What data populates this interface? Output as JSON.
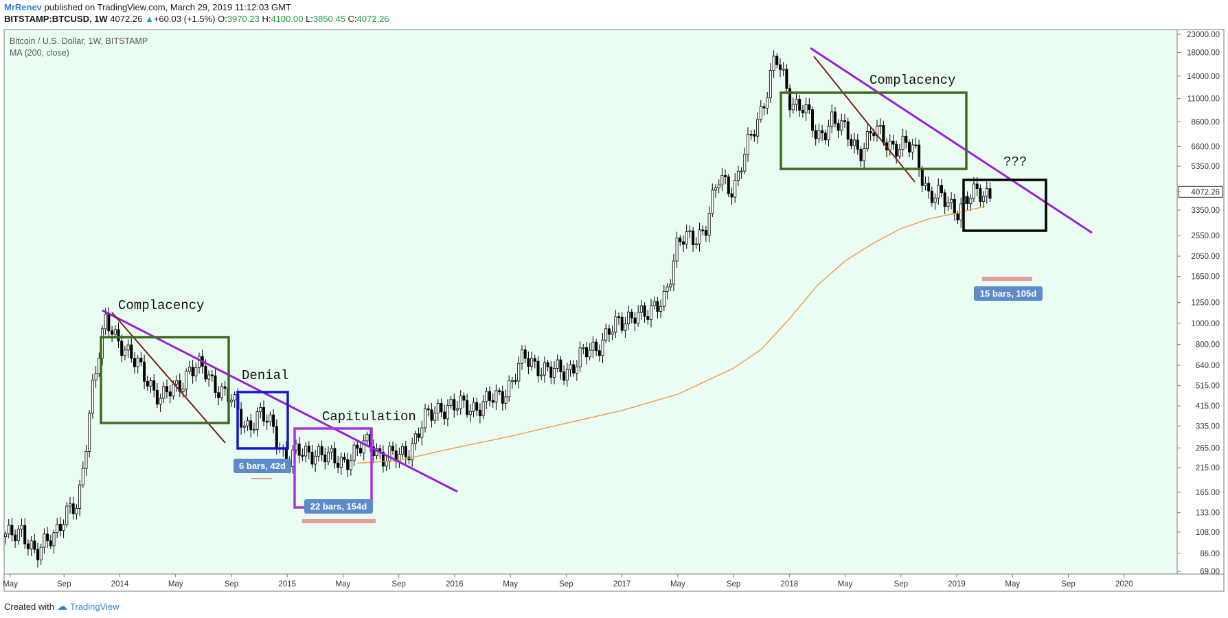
{
  "header": {
    "author": "MrRenev",
    "published": " published on TradingView.com, March 29, 2019 11:12:03 GMT",
    "symbol": "BITSTAMP:BTCUSD, 1W",
    "price": "4072.26",
    "change": "+60.03 (+1.5%)",
    "o_label": "O:",
    "o": "3970.23",
    "h_label": "H:",
    "h": "4100.00",
    "l_label": "L:",
    "l": "3850.45",
    "c_label": "C:",
    "c": "4072.26"
  },
  "footer": {
    "created": "Created with",
    "brand": "TradingView"
  },
  "colors": {
    "background": "#eafdf3",
    "up": "#ffffff",
    "down": "#000000",
    "ma": "#f59a3b",
    "trend": "#9b1de0",
    "green_box": "#3c6b1c",
    "blue_box": "#1515d8",
    "purple_box": "#a436e0",
    "black_box": "#000000",
    "brown_line": "#7c1f12",
    "note_bg": "#5b8bc9",
    "range_bar": "#e29c9c"
  },
  "chart_data": {
    "type": "candlestick",
    "title": "Bitcoin / U.S. Dollar, 1W, BITSTAMP",
    "indicator": "MA (200, close)",
    "y_scale": "log",
    "y_ticks": [
      "23000.00",
      "18000.00",
      "14000.00",
      "11000.00",
      "8600.00",
      "6600.00",
      "5350.00",
      "4072.26",
      "3350.00",
      "2550.00",
      "2050.00",
      "1650.00",
      "1250.00",
      "1000.00",
      "800.00",
      "640.00",
      "515.00",
      "415.00",
      "335.00",
      "265.00",
      "215.00",
      "165.00",
      "133.00",
      "108.00",
      "86.00",
      "69.00"
    ],
    "x_ticks": [
      "May",
      "Sep",
      "2014",
      "May",
      "Sep",
      "2015",
      "May",
      "Sep",
      "2016",
      "May",
      "Sep",
      "2017",
      "May",
      "Sep",
      "2018",
      "May",
      "Sep",
      "2019",
      "May",
      "Sep",
      "2020"
    ],
    "last_price": "4072.26",
    "price_path": [
      [
        "2013-05",
        100
      ],
      [
        "2013-06",
        115
      ],
      [
        "2013-07",
        80
      ],
      [
        "2013-08",
        105
      ],
      [
        "2013-09",
        125
      ],
      [
        "2013-10",
        140
      ],
      [
        "2013-11",
        500
      ],
      [
        "2013-12",
        1000
      ],
      [
        "2014-01",
        850
      ],
      [
        "2014-02",
        650
      ],
      [
        "2014-03",
        560
      ],
      [
        "2014-04",
        440
      ],
      [
        "2014-05",
        500
      ],
      [
        "2014-06",
        620
      ],
      [
        "2014-07",
        600
      ],
      [
        "2014-08",
        520
      ],
      [
        "2014-09",
        430
      ],
      [
        "2014-10",
        340
      ],
      [
        "2014-11",
        370
      ],
      [
        "2014-12",
        330
      ],
      [
        "2015-01",
        230
      ],
      [
        "2015-02",
        250
      ],
      [
        "2015-03",
        260
      ],
      [
        "2015-04",
        230
      ],
      [
        "2015-05",
        235
      ],
      [
        "2015-06",
        250
      ],
      [
        "2015-07",
        285
      ],
      [
        "2015-08",
        235
      ],
      [
        "2015-09",
        240
      ],
      [
        "2015-10",
        280
      ],
      [
        "2015-11",
        360
      ],
      [
        "2015-12",
        420
      ],
      [
        "2016-01",
        400
      ],
      [
        "2016-02",
        420
      ],
      [
        "2016-03",
        415
      ],
      [
        "2016-04",
        450
      ],
      [
        "2016-05",
        530
      ],
      [
        "2016-06",
        680
      ],
      [
        "2016-07",
        650
      ],
      [
        "2016-08",
        580
      ],
      [
        "2016-09",
        610
      ],
      [
        "2016-10",
        700
      ],
      [
        "2016-11",
        740
      ],
      [
        "2016-12",
        950
      ],
      [
        "2017-01",
        960
      ],
      [
        "2017-02",
        1180
      ],
      [
        "2017-03",
        1050
      ],
      [
        "2017-04",
        1350
      ],
      [
        "2017-05",
        2300
      ],
      [
        "2017-06",
        2500
      ],
      [
        "2017-07",
        2800
      ],
      [
        "2017-08",
        4700
      ],
      [
        "2017-09",
        4300
      ],
      [
        "2017-10",
        6400
      ],
      [
        "2017-11",
        10000
      ],
      [
        "2017-12",
        17000
      ],
      [
        "2018-01",
        11000
      ],
      [
        "2018-02",
        10300
      ],
      [
        "2018-03",
        6900
      ],
      [
        "2018-04",
        9200
      ],
      [
        "2018-05",
        7500
      ],
      [
        "2018-06",
        6400
      ],
      [
        "2018-07",
        7700
      ],
      [
        "2018-08",
        7000
      ],
      [
        "2018-09",
        6600
      ],
      [
        "2018-10",
        6300
      ],
      [
        "2018-11",
        4000
      ],
      [
        "2018-12",
        3700
      ],
      [
        "2019-01",
        3450
      ],
      [
        "2019-02",
        3800
      ],
      [
        "2019-03",
        4072
      ]
    ],
    "ma_path": [
      [
        "2015-06",
        225
      ],
      [
        "2015-09",
        232
      ],
      [
        "2016-01",
        265
      ],
      [
        "2016-05",
        300
      ],
      [
        "2016-09",
        345
      ],
      [
        "2017-01",
        395
      ],
      [
        "2017-05",
        470
      ],
      [
        "2017-09",
        620
      ],
      [
        "2017-11",
        760
      ],
      [
        "2018-01",
        1050
      ],
      [
        "2018-03",
        1500
      ],
      [
        "2018-05",
        1950
      ],
      [
        "2018-07",
        2350
      ],
      [
        "2018-09",
        2750
      ],
      [
        "2018-11",
        3050
      ],
      [
        "2019-01",
        3250
      ],
      [
        "2019-03",
        3480
      ]
    ],
    "annotations": {
      "complacency_1": "Complacency",
      "denial": "Denial",
      "capitulation": "Capitulation",
      "complacency_2": "Complacency",
      "question": "???",
      "range_1": "6 bars, 42d",
      "range_2": "22 bars, 154d",
      "range_3": "15 bars, 105d"
    }
  }
}
